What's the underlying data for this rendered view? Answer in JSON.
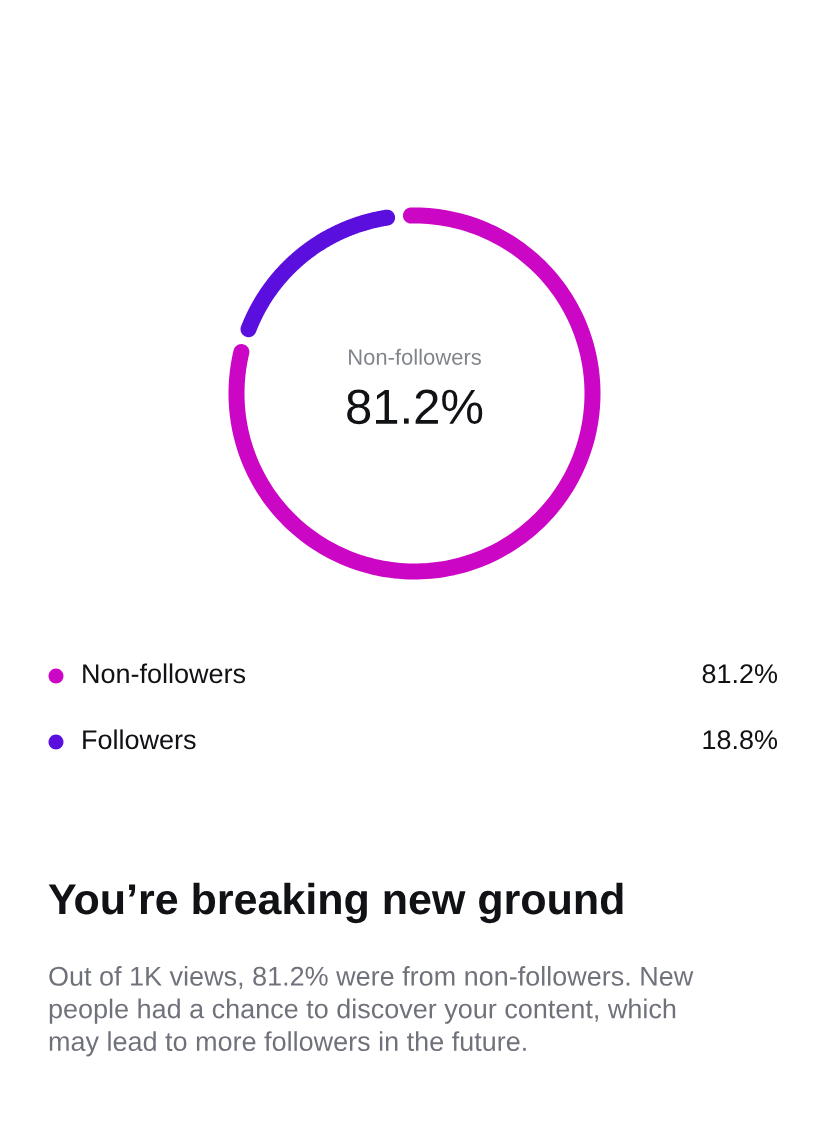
{
  "chart_data": {
    "type": "donut",
    "title": "You’re breaking new ground",
    "categories": [
      "Non-followers",
      "Followers"
    ],
    "values": [
      81.2,
      18.8
    ],
    "colors": [
      "#cb06c4",
      "#5b0fdf"
    ],
    "value_labels": [
      "81.2%",
      "18.8%"
    ],
    "legend": "bottom",
    "annotations": [
      "Out of 1K views, 81.2% were from non-followers. New people had a chance to discover your content, which may lead to more followers in the future."
    ]
  }
}
